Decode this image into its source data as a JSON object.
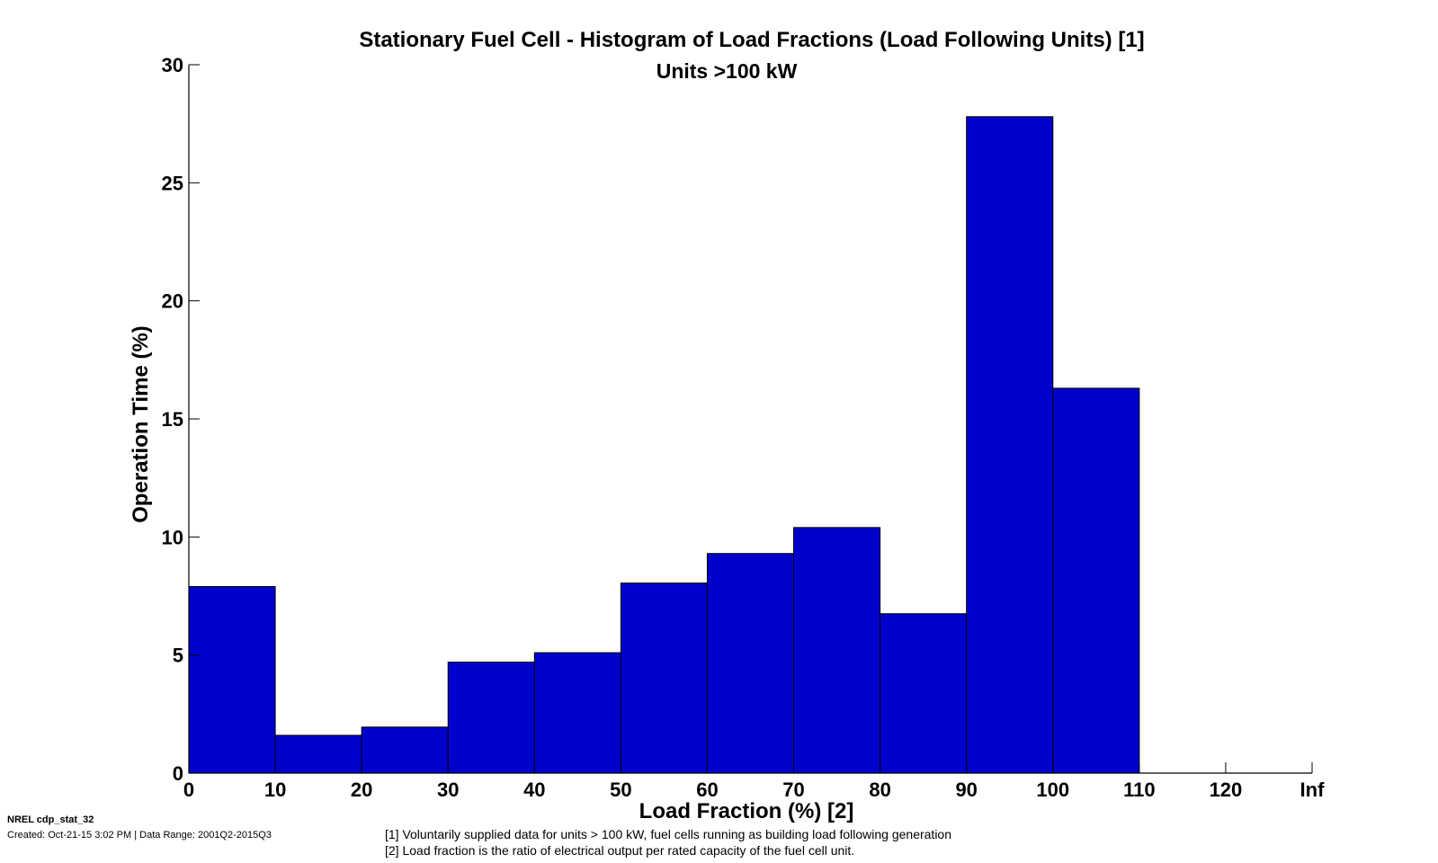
{
  "chart_data": {
    "type": "bar",
    "title": "Stationary Fuel Cell - Histogram of Load Fractions (Load Following Units) [1]",
    "subtitle": "Units >100 kW",
    "xlabel": "Load Fraction (%) [2]",
    "ylabel": "Operation Time (%)",
    "x_tick_labels": [
      "0",
      "10",
      "20",
      "30",
      "40",
      "50",
      "60",
      "70",
      "80",
      "90",
      "100",
      "110",
      "120",
      "Inf"
    ],
    "y_tick_labels": [
      "0",
      "5",
      "10",
      "15",
      "20",
      "25",
      "30"
    ],
    "ylim": [
      0,
      30
    ],
    "bins": [
      {
        "from": 0,
        "to": 10,
        "value": 7.9
      },
      {
        "from": 10,
        "to": 20,
        "value": 1.6
      },
      {
        "from": 20,
        "to": 30,
        "value": 1.95
      },
      {
        "from": 30,
        "to": 40,
        "value": 4.7
      },
      {
        "from": 40,
        "to": 50,
        "value": 5.1
      },
      {
        "from": 50,
        "to": 60,
        "value": 8.05
      },
      {
        "from": 60,
        "to": 70,
        "value": 9.3
      },
      {
        "from": 70,
        "to": 80,
        "value": 10.4
      },
      {
        "from": 80,
        "to": 90,
        "value": 6.75
      },
      {
        "from": 90,
        "to": 100,
        "value": 27.8
      },
      {
        "from": 100,
        "to": 110,
        "value": 16.3
      },
      {
        "from": 110,
        "to": 120,
        "value": 0
      },
      {
        "from": 120,
        "to": "Inf",
        "value": 0
      }
    ],
    "bar_color": "#0000cc",
    "grid": false,
    "legend": "none"
  },
  "footer": {
    "figure_id": "NREL cdp_stat_32",
    "created": "Created: Oct-21-15  3:02 PM | Data Range: 2001Q2-2015Q3",
    "note_1": "[1] Voluntarily supplied data for units > 100 kW, fuel cells running as building load following generation",
    "note_2": "[2] Load fraction is the ratio of electrical output per rated capacity of the fuel cell unit."
  }
}
